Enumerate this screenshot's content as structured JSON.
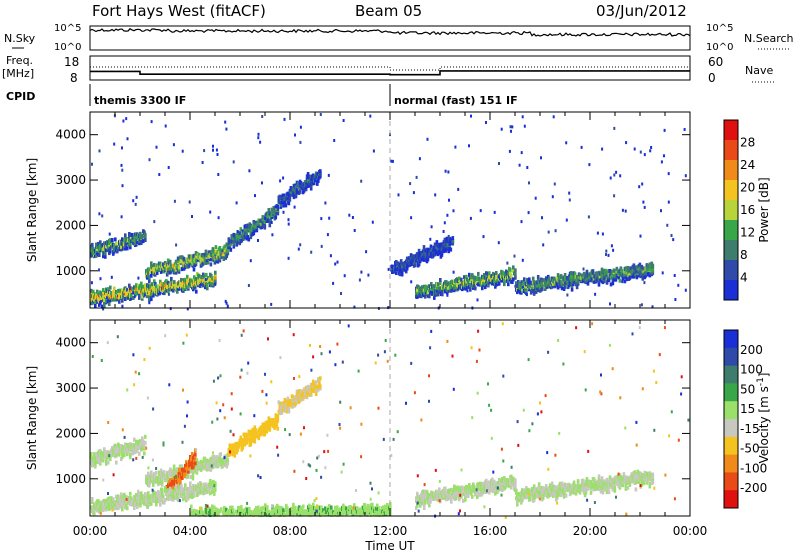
{
  "header": {
    "station": "Fort Hays West (fitACF)",
    "beam": "Beam 05",
    "date": "03/Jun/2012"
  },
  "status_panels": {
    "nsky_label": "N.Sky",
    "nsky_ticks": [
      "10^5",
      "10^0"
    ],
    "nsearch_label": "N.Search",
    "nsearch_ticks": [
      "10^5",
      "10^0"
    ],
    "freq_label_1": "Freq.",
    "freq_label_2": "[MHz]",
    "freq_ticks": [
      "18",
      "8"
    ],
    "nave_label": "Nave",
    "nave_ticks": [
      "60",
      "0"
    ],
    "cpid_label": "CPID",
    "cpid_segments": [
      {
        "start_h": 0,
        "name": "themis 3300 IF"
      },
      {
        "start_h": 12,
        "name": "normal (fast) 151 IF"
      }
    ],
    "freq_steps": [
      {
        "start_h": 0,
        "end_h": 2,
        "value_mhz": 11.6
      },
      {
        "start_h": 2,
        "end_h": 12,
        "value_mhz": 10.4
      },
      {
        "start_h": 12,
        "end_h": 14,
        "value_mhz": 10.2
      },
      {
        "start_h": 14,
        "end_h": 24,
        "value_mhz": 11.8
      }
    ]
  },
  "chart_data": [
    {
      "type": "heatmap",
      "name": "power",
      "ylabel": "Slant Range [km]",
      "xlabel": "Time UT",
      "xlim": [
        0,
        24
      ],
      "ylim": [
        180,
        4500
      ],
      "y_ticks": [
        "1000",
        "2000",
        "3000",
        "4000"
      ],
      "x_ticks": [
        "00:00",
        "04:00",
        "08:00",
        "12:00",
        "16:00",
        "20:00",
        "00:00"
      ],
      "colorbar_label": "Power [dB]",
      "colorbar_ticks": [
        "4",
        "8",
        "12",
        "16",
        "20",
        "24",
        "28"
      ],
      "colorbar_colors": [
        "#1a2fd6",
        "#2f4aa8",
        "#3e7d6e",
        "#3aa64a",
        "#b7d43a",
        "#f5c320",
        "#f08a1a",
        "#ea4a18",
        "#e01010"
      ],
      "bands": [
        {
          "t0": 0.0,
          "t1": 2.2,
          "r0": 1300,
          "r1": 1500,
          "r2": 1750,
          "p": 14
        },
        {
          "t0": 2.2,
          "t1": 5.5,
          "r0": 800,
          "r1": 1100,
          "r2": 1400,
          "p": 18
        },
        {
          "t0": 5.5,
          "t1": 7.5,
          "r0": 1400,
          "r1": 1800,
          "r2": 2300,
          "p": 12
        },
        {
          "t0": 7.5,
          "t1": 9.2,
          "r0": 2300,
          "r1": 2700,
          "r2": 3100,
          "p": 8
        },
        {
          "t0": 0.0,
          "t1": 5.0,
          "r0": 250,
          "r1": 500,
          "r2": 800,
          "p": 22
        },
        {
          "t0": 13.0,
          "t1": 17.0,
          "r0": 400,
          "r1": 650,
          "r2": 900,
          "p": 16
        },
        {
          "t0": 17.0,
          "t1": 22.5,
          "r0": 500,
          "r1": 750,
          "r2": 1000,
          "p": 14
        },
        {
          "t0": 12.0,
          "t1": 14.5,
          "r0": 800,
          "r1": 1200,
          "r2": 1600,
          "p": 6
        }
      ]
    },
    {
      "type": "heatmap",
      "name": "velocity",
      "ylabel": "Slant Range [km]",
      "xlabel": "Time UT",
      "xlim": [
        0,
        24
      ],
      "ylim": [
        180,
        4500
      ],
      "y_ticks": [
        "1000",
        "2000",
        "3000",
        "4000"
      ],
      "x_ticks": [
        "00:00",
        "04:00",
        "08:00",
        "12:00",
        "16:00",
        "20:00",
        "00:00"
      ],
      "colorbar_label": "Velocity [m s^-1]",
      "colorbar_ticks": [
        "200",
        "100",
        "50",
        "15",
        "-15",
        "-50",
        "-100",
        "-200"
      ],
      "colorbar_colors": [
        "#1a2fd6",
        "#2f4aa8",
        "#3e7d6e",
        "#3aa64a",
        "#9be06a",
        "#c8c8c0",
        "#f5c320",
        "#f08a1a",
        "#ea4a18",
        "#e01010"
      ],
      "bands": [
        {
          "t0": 0.0,
          "t1": 2.2,
          "r0": 1300,
          "r1": 1500,
          "r2": 1750,
          "v": 0
        },
        {
          "t0": 2.2,
          "t1": 5.5,
          "r0": 800,
          "r1": 1100,
          "r2": 1400,
          "v": 0
        },
        {
          "t0": 3.0,
          "t1": 4.2,
          "r0": 500,
          "r1": 900,
          "r2": 1500,
          "v": -120
        },
        {
          "t0": 5.5,
          "t1": 7.5,
          "r0": 1400,
          "r1": 1800,
          "r2": 2300,
          "v": -60
        },
        {
          "t0": 7.5,
          "t1": 9.2,
          "r0": 2300,
          "r1": 2700,
          "r2": 3100,
          "v": -40
        },
        {
          "t0": 0.0,
          "t1": 5.0,
          "r0": 250,
          "r1": 500,
          "r2": 800,
          "v": 0
        },
        {
          "t0": 13.0,
          "t1": 17.0,
          "r0": 400,
          "r1": 650,
          "r2": 900,
          "v": 0
        },
        {
          "t0": 17.0,
          "t1": 22.5,
          "r0": 500,
          "r1": 750,
          "r2": 1000,
          "v": 0
        },
        {
          "t0": 4.0,
          "t1": 12.0,
          "r0": 180,
          "r1": 230,
          "r2": 280,
          "v": 30
        }
      ]
    }
  ]
}
